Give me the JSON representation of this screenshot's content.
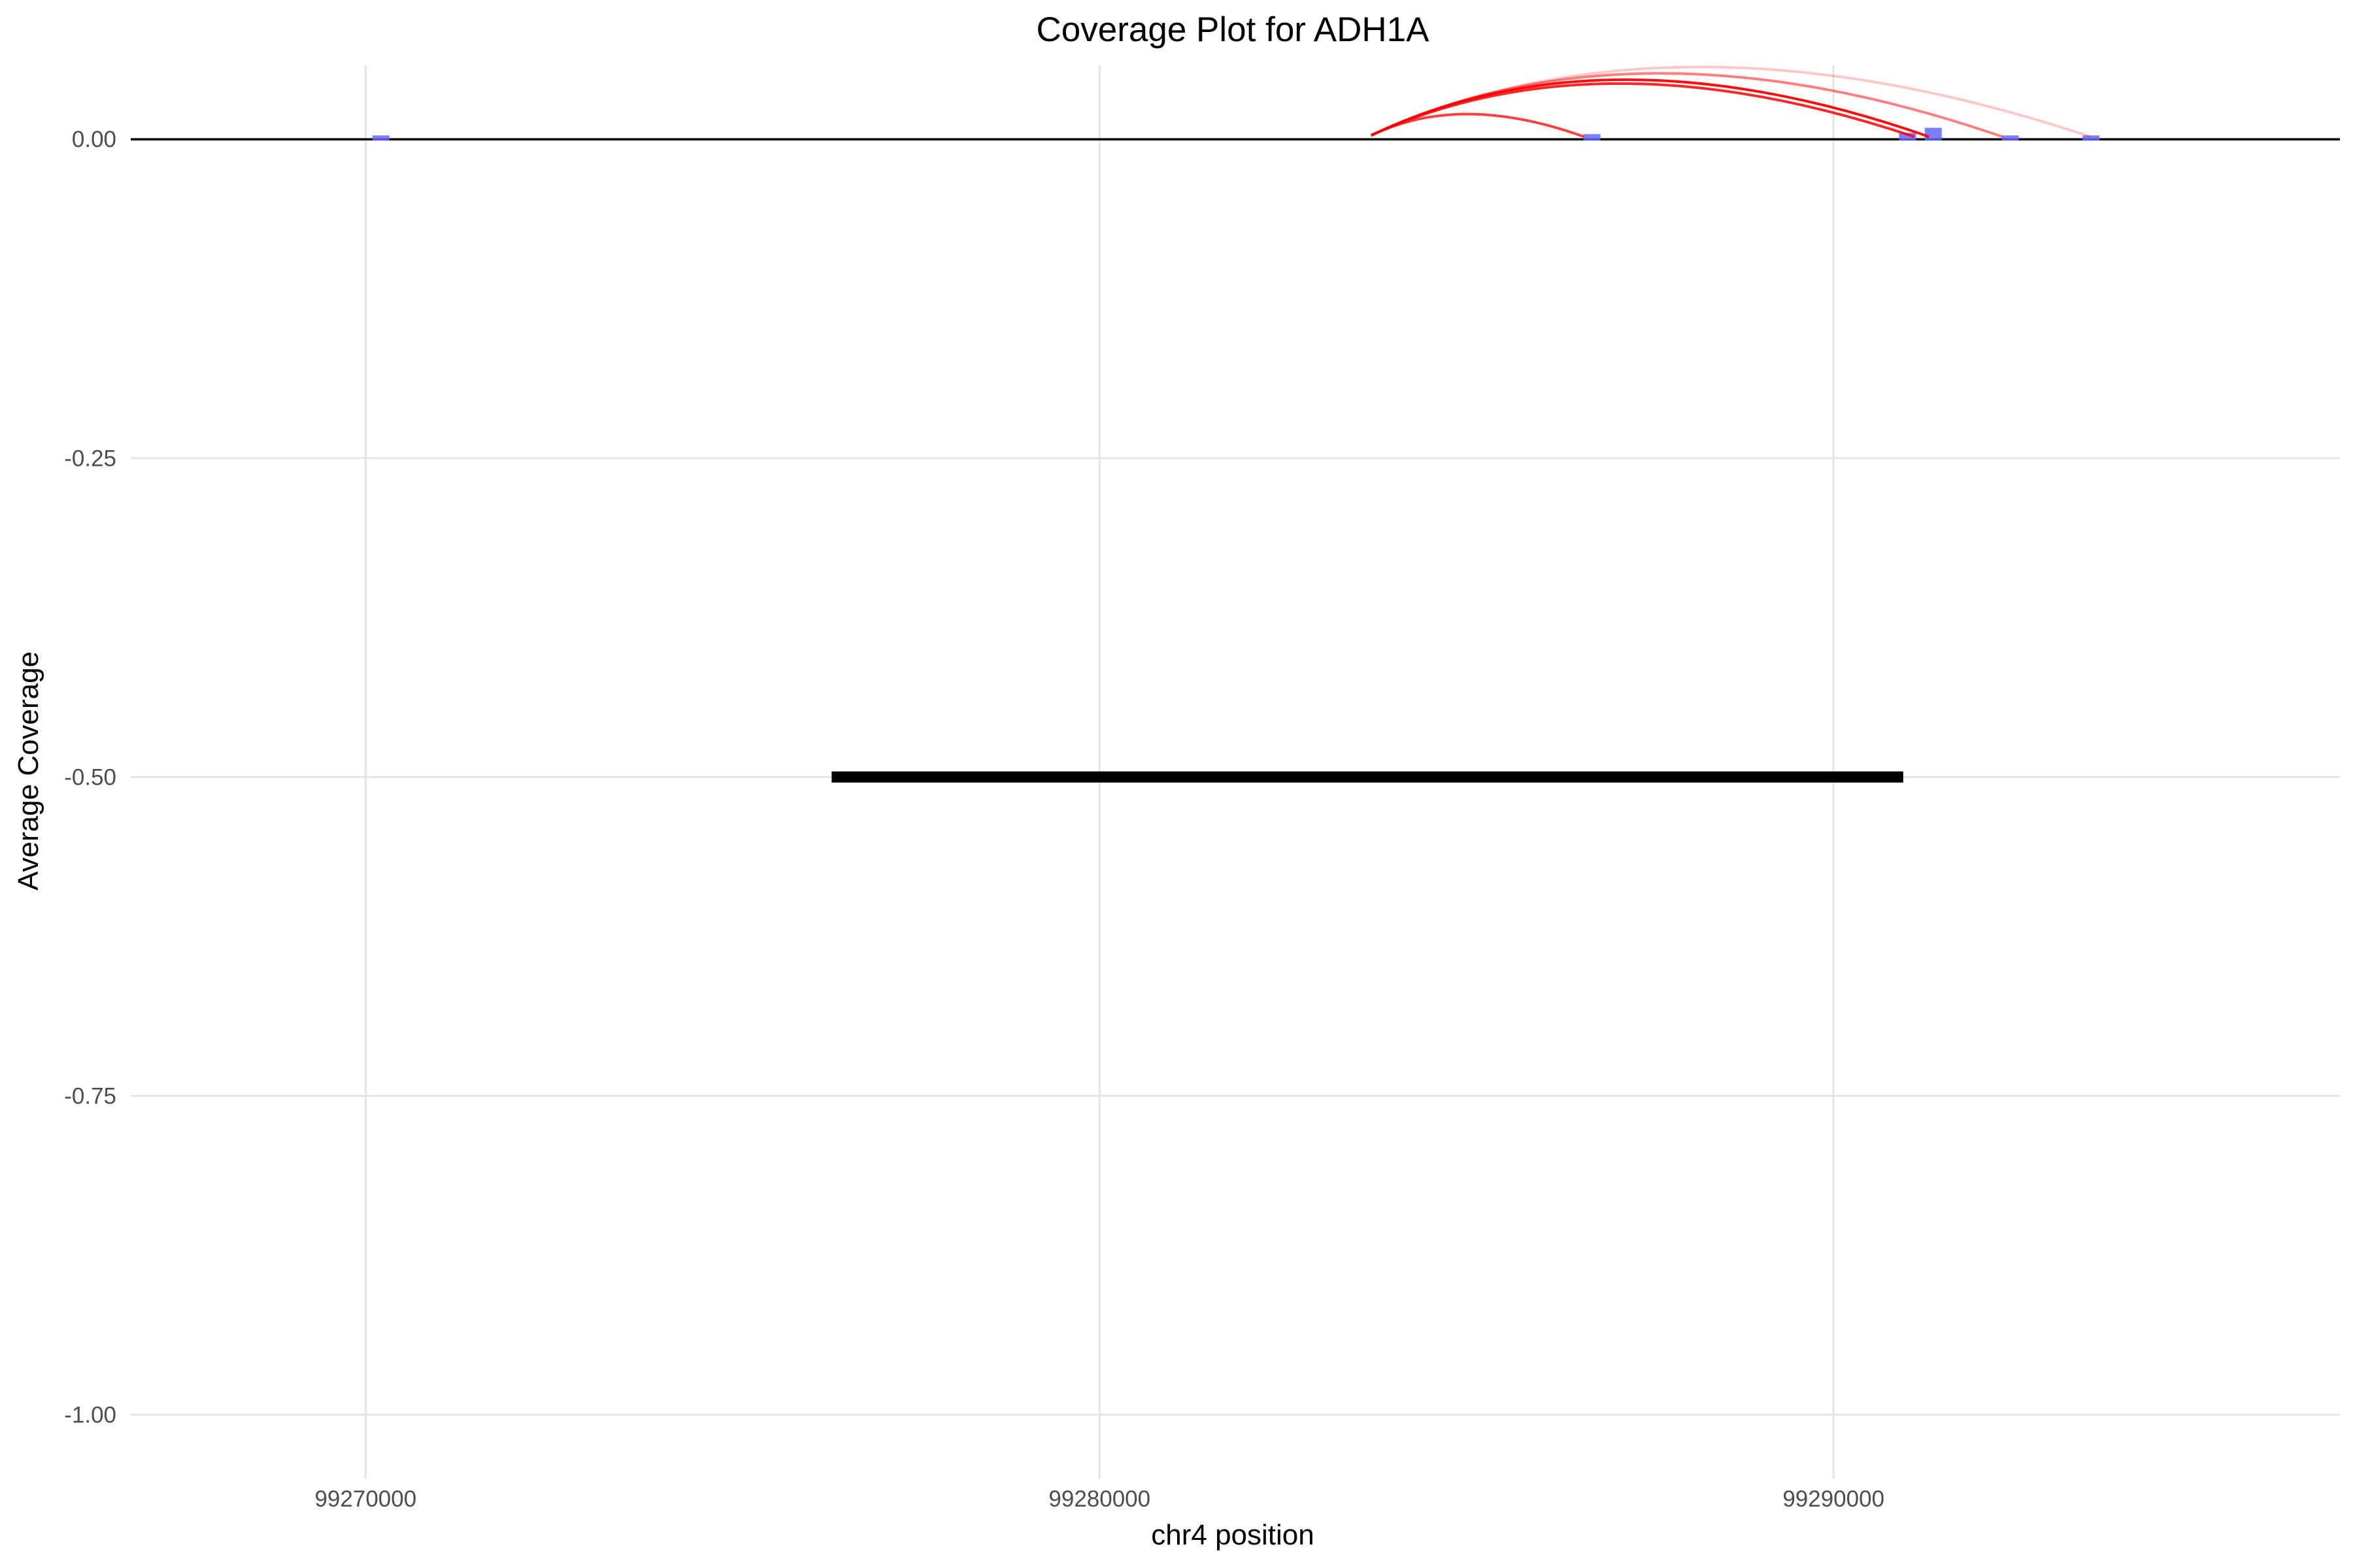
{
  "chart_data": {
    "type": "line",
    "title": "Coverage Plot for ADH1A",
    "xlabel": "chr4 position",
    "ylabel": "Average Coverage",
    "xlim": [
      99266800,
      99296900
    ],
    "ylim": [
      -1.05,
      0.058
    ],
    "x_ticks": [
      99270000,
      99280000,
      99290000
    ],
    "x_tick_labels": [
      "99270000",
      "99280000",
      "99290000"
    ],
    "y_ticks": [
      0,
      -0.25,
      -0.5,
      -0.75,
      -1
    ],
    "y_tick_labels": [
      "0.00",
      "-0.25",
      "-0.50",
      "-0.75",
      "-1.00"
    ],
    "grid": true,
    "legend": "none",
    "baseline": {
      "y": 0,
      "color": "#000000"
    },
    "gene_model": {
      "name": "ADH1A",
      "start": 99276350,
      "end": 99290950,
      "y": -0.5,
      "color": "#000000"
    },
    "coverage_marks": {
      "color": "#6666ff",
      "points": [
        {
          "x": 99270200,
          "y": 0.001
        },
        {
          "x": 99286700,
          "y": 0.002
        },
        {
          "x": 99291000,
          "y": 0.003
        },
        {
          "x": 99291350,
          "y": 0.007
        },
        {
          "x": 99292400,
          "y": 0.001
        },
        {
          "x": 99293500,
          "y": 0.001
        }
      ]
    },
    "junction_arcs": {
      "color": "#ff0000",
      "series": [
        {
          "start": 99283700,
          "end": 99286600,
          "height": 0.02,
          "alpha": 0.75
        },
        {
          "start": 99283700,
          "end": 99291300,
          "height": 0.047,
          "alpha": 0.95
        },
        {
          "start": 99283700,
          "end": 99291100,
          "height": 0.044,
          "alpha": 0.85
        },
        {
          "start": 99283700,
          "end": 99292300,
          "height": 0.052,
          "alpha": 0.5
        },
        {
          "start": 99283700,
          "end": 99293500,
          "height": 0.057,
          "alpha": 0.22
        }
      ]
    }
  }
}
